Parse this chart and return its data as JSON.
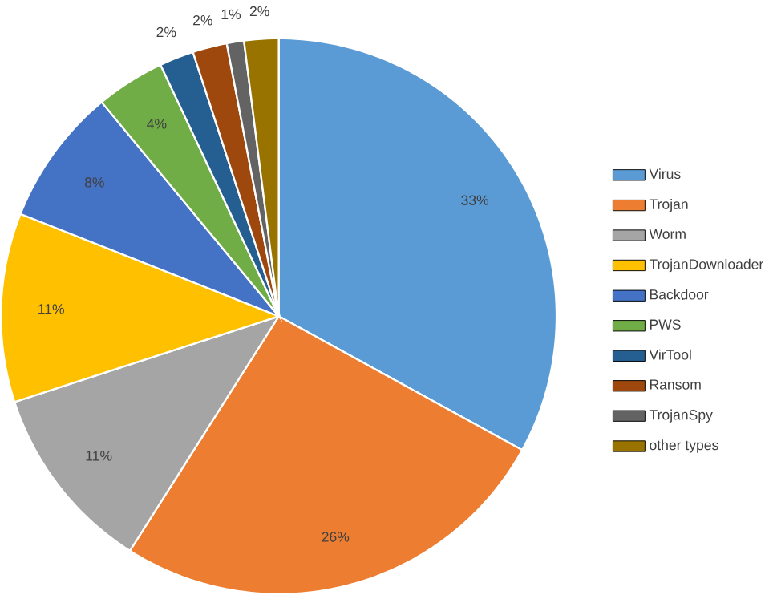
{
  "chart_data": {
    "type": "pie",
    "categories": [
      "Virus",
      "Trojan",
      "Worm",
      "TrojanDownloader",
      "Backdoor",
      "PWS",
      "VirTool",
      "Ransom",
      "TrojanSpy",
      "other types"
    ],
    "values": [
      33,
      26,
      11,
      11,
      8,
      4,
      2,
      2,
      1,
      2
    ],
    "value_labels": [
      "33%",
      "26%",
      "11%",
      "11%",
      "8%",
      "4%",
      "2%",
      "2%",
      "1%",
      "2%"
    ],
    "colors": [
      "#5b9bd5",
      "#ed7d31",
      "#a5a5a5",
      "#ffc000",
      "#4472c4",
      "#70ad47",
      "#255e91",
      "#9e480e",
      "#636363",
      "#997300"
    ],
    "legend": "right"
  }
}
